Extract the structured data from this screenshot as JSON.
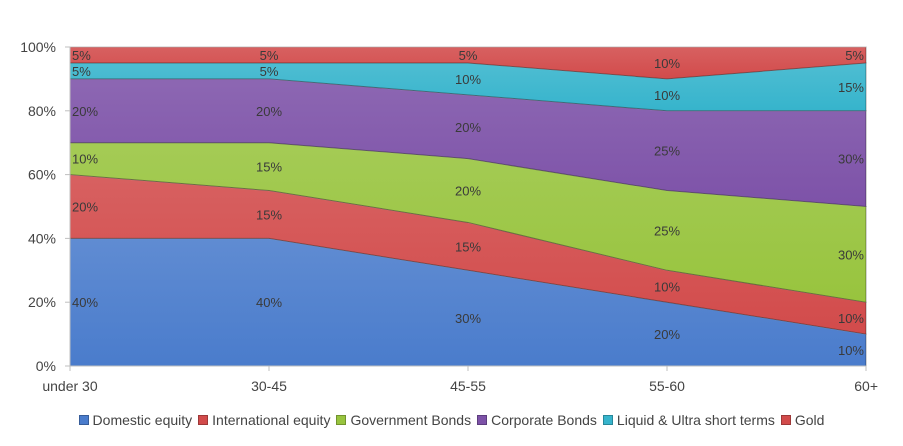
{
  "chart_data": {
    "type": "area",
    "stacked": true,
    "percent": true,
    "categories": [
      "under 30",
      "30-45",
      "45-55",
      "55-60",
      "60+"
    ],
    "series": [
      {
        "name": "Domestic equity",
        "color": "#4a7ccc",
        "values": [
          40,
          40,
          30,
          20,
          10
        ]
      },
      {
        "name": "International equity",
        "color": "#d24b4b",
        "values": [
          20,
          15,
          15,
          10,
          10
        ]
      },
      {
        "name": "Government Bonds",
        "color": "#98c43e",
        "values": [
          10,
          15,
          20,
          25,
          30
        ]
      },
      {
        "name": "Corporate Bonds",
        "color": "#7d52a8",
        "values": [
          20,
          20,
          20,
          25,
          30
        ]
      },
      {
        "name": "Liquid & Ultra short terms",
        "color": "#36b4cc",
        "values": [
          5,
          5,
          10,
          10,
          15
        ]
      },
      {
        "name": "Gold",
        "color": "#d24b4b",
        "values": [
          5,
          5,
          5,
          10,
          5
        ]
      }
    ],
    "data_labels": [
      [
        "40%",
        "40%",
        "30%",
        "20%",
        "10%"
      ],
      [
        "20%",
        "15%",
        "15%",
        "10%",
        "10%"
      ],
      [
        "10%",
        "15%",
        "20%",
        "25%",
        "30%"
      ],
      [
        "20%",
        "20%",
        "20%",
        "25%",
        "30%"
      ],
      [
        "5%",
        "5%",
        "10%",
        "10%",
        "15%"
      ],
      [
        "5%",
        "5%",
        "5%",
        "10%",
        "5%"
      ]
    ],
    "yticks": [
      "0%",
      "20%",
      "40%",
      "60%",
      "80%",
      "100%"
    ],
    "ylim": [
      0,
      100
    ],
    "title": "",
    "xlabel": "",
    "ylabel": "",
    "legend_position": "bottom",
    "grid": false
  }
}
